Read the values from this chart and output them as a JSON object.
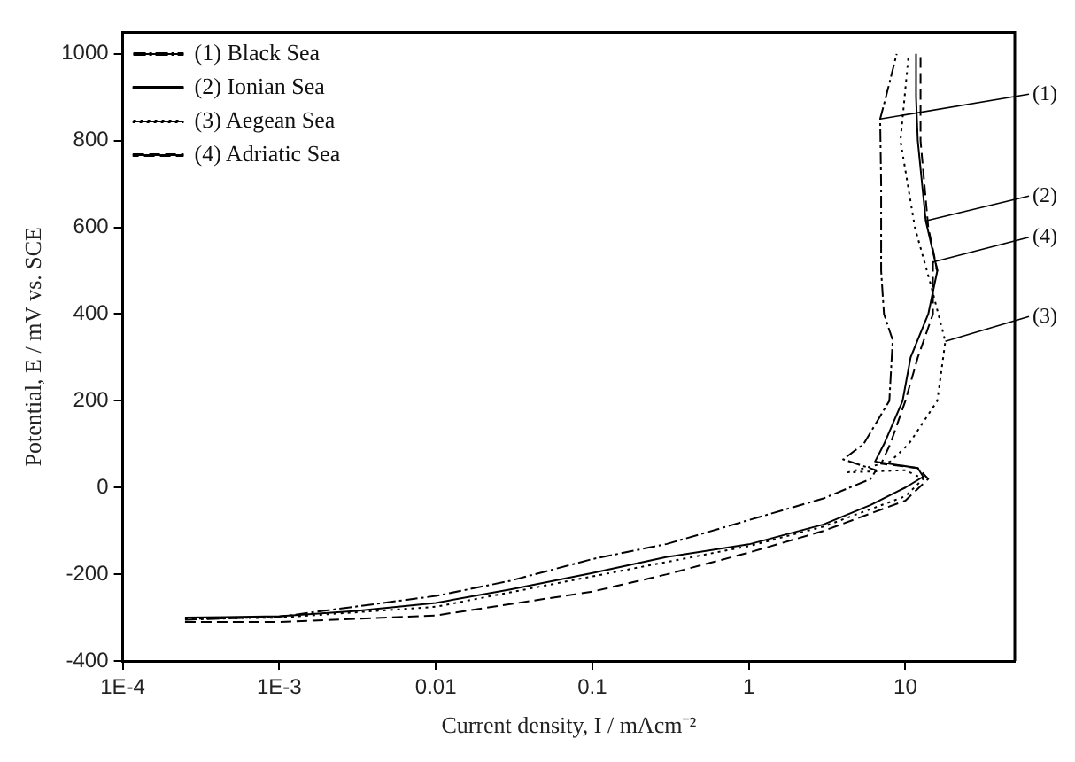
{
  "chart_data": {
    "type": "line",
    "xlabel": "Current density, I / mAcm⁻²",
    "ylabel": "Potential, E / mV vs. SCE",
    "log": "x",
    "grid": false,
    "legend": "top left",
    "marker": "none",
    "xlim": [
      0.0001,
      50
    ],
    "xticks": [
      {
        "value": 0.0001,
        "label": "1E-4"
      },
      {
        "value": 0.001,
        "label": "1E-3"
      },
      0.01,
      0.1,
      1,
      10
    ],
    "ylim": [
      -400,
      1050
    ],
    "yticks": [
      -400,
      -200,
      0,
      200,
      400,
      600,
      800,
      1000
    ],
    "series": [
      {
        "name": "(1) Black Sea",
        "color": "#000000",
        "line_style": "dashdot",
        "x": [
          0.00025,
          0.001,
          0.003,
          0.01,
          0.03,
          0.1,
          0.3,
          1,
          3,
          6,
          6.5,
          4,
          5.4,
          7.9,
          8.3,
          7.3,
          7,
          7,
          6.9,
          7.5,
          8.8
        ],
        "values": [
          -305,
          -298,
          -275,
          -250,
          -215,
          -165,
          -130,
          -75,
          -25,
          20,
          40,
          65,
          100,
          200,
          340,
          400,
          500,
          700,
          850,
          900,
          1000
        ]
      },
      {
        "name": "(2) Ionian Sea",
        "color": "#000000",
        "line_style": "solid",
        "x": [
          0.00025,
          0.001,
          0.003,
          0.01,
          0.03,
          0.1,
          0.3,
          1,
          3,
          6,
          10,
          13,
          12,
          6.4,
          7.3,
          9.6,
          10.8,
          14,
          16,
          13.5,
          12,
          11.7,
          11.7
        ],
        "values": [
          -300,
          -297,
          -285,
          -266,
          -235,
          -197,
          -160,
          -131,
          -85,
          -40,
          0,
          25,
          45,
          60,
          100,
          200,
          300,
          400,
          500,
          615,
          800,
          900,
          1000
        ]
      },
      {
        "name": "(3) Aegean Sea",
        "color": "#000000",
        "line_style": "dotted",
        "x": [
          0.00025,
          0.001,
          0.01,
          0.1,
          1,
          3,
          10,
          13,
          10,
          4.3,
          8,
          10.5,
          16,
          18,
          14.5,
          11.5,
          9.3,
          10.5
        ],
        "values": [
          -303,
          -300,
          -275,
          -205,
          -135,
          -90,
          -20,
          20,
          40,
          35,
          60,
          100,
          200,
          337,
          469,
          600,
          800,
          1000
        ]
      },
      {
        "name": "(4) Adriatic Sea",
        "color": "#000000",
        "line_style": "dashed",
        "x": [
          0.00025,
          0.001,
          0.01,
          0.1,
          0.3,
          1,
          3,
          10,
          14,
          12,
          7,
          8,
          10,
          12,
          15,
          15,
          16,
          14,
          12.5,
          12.5
        ],
        "values": [
          -310,
          -310,
          -295,
          -240,
          -200,
          -150,
          -100,
          -30,
          20,
          45,
          55,
          100,
          200,
          300,
          400,
          520,
          500,
          600,
          800,
          1000
        ]
      }
    ],
    "annotations": [
      {
        "text": "(1)",
        "x": 6.9,
        "y": 850
      },
      {
        "text": "(2)",
        "x": 13.5,
        "y": 615
      },
      {
        "text": "(4)",
        "x": 15,
        "y": 520
      },
      {
        "text": "(3)",
        "x": 18,
        "y": 337
      }
    ]
  }
}
